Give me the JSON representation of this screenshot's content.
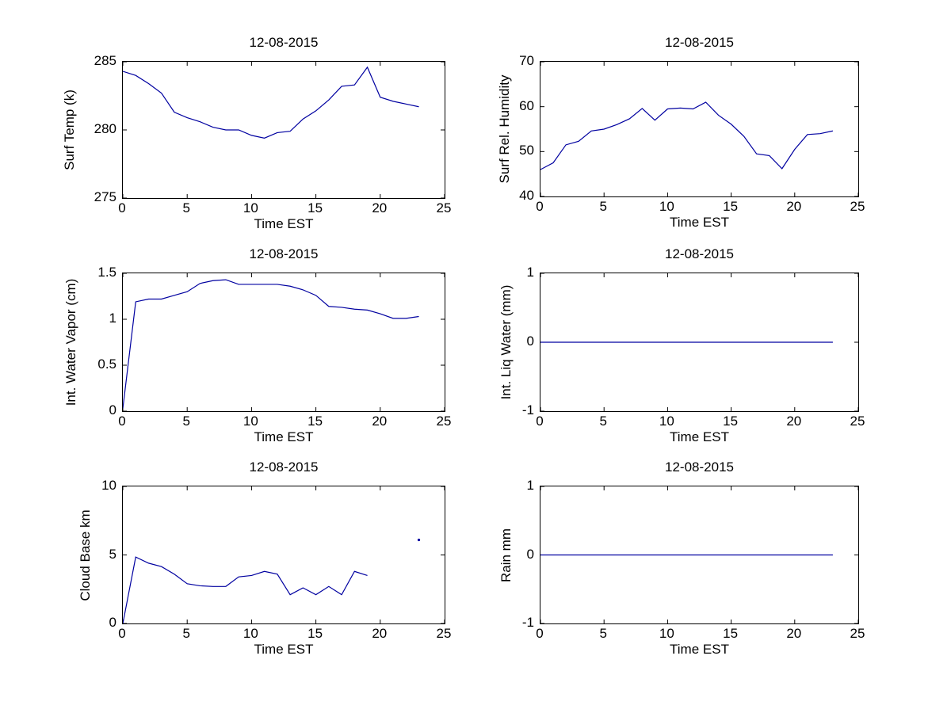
{
  "figure": {
    "background": "#FFFFFF",
    "axis_color": "#000000",
    "text_color": "#000000",
    "line_color": "#0000A0"
  },
  "chart_data": [
    {
      "type": "line",
      "title": "12-08-2015",
      "xlabel": "Time EST",
      "ylabel": "Surf Temp (k)",
      "xlim": [
        0,
        25
      ],
      "ylim": [
        275,
        285
      ],
      "xticks": [
        0,
        5,
        10,
        15,
        20,
        25
      ],
      "xtick_labels": [
        "0",
        "5",
        "10",
        "15",
        "20",
        "25"
      ],
      "yticks": [
        275,
        280,
        285
      ],
      "ytick_labels": [
        "275",
        "280",
        "285"
      ],
      "grid": false,
      "x": [
        0,
        1,
        2,
        3,
        4,
        5,
        6,
        7,
        8,
        9,
        10,
        11,
        12,
        13,
        14,
        15,
        16,
        17,
        18,
        19,
        20,
        21,
        22,
        23
      ],
      "y": [
        284.3,
        284.0,
        283.4,
        282.7,
        281.3,
        280.9,
        280.6,
        280.2,
        280.0,
        280.0,
        279.6,
        279.4,
        279.8,
        279.9,
        280.8,
        281.4,
        282.2,
        283.2,
        283.3,
        284.6,
        282.4,
        282.1,
        281.9,
        281.7
      ]
    },
    {
      "type": "line",
      "title": "12-08-2015",
      "xlabel": "Time EST",
      "ylabel": "Surf Rel. Humidity",
      "xlim": [
        0,
        25
      ],
      "ylim": [
        40,
        70
      ],
      "xticks": [
        0,
        5,
        10,
        15,
        20,
        25
      ],
      "xtick_labels": [
        "0",
        "5",
        "10",
        "15",
        "20",
        "25"
      ],
      "yticks": [
        40,
        50,
        60,
        70
      ],
      "ytick_labels": [
        "40",
        "50",
        "60",
        "70"
      ],
      "grid": false,
      "x": [
        0,
        1,
        2,
        3,
        4,
        5,
        6,
        7,
        8,
        9,
        10,
        11,
        12,
        13,
        14,
        15,
        16,
        17,
        18,
        19,
        20,
        21,
        22,
        23
      ],
      "y": [
        46.0,
        47.5,
        51.5,
        52.3,
        54.6,
        55.0,
        56.0,
        57.3,
        59.6,
        57.0,
        59.5,
        59.7,
        59.5,
        61.0,
        58.1,
        56.1,
        53.4,
        49.5,
        49.1,
        46.2,
        50.5,
        53.8,
        54.0,
        54.6
      ]
    },
    {
      "type": "line",
      "title": "12-08-2015",
      "xlabel": "Time EST",
      "ylabel": "Int. Water Vapor (cm)",
      "xlim": [
        0,
        25
      ],
      "ylim": [
        0,
        1.5
      ],
      "xticks": [
        0,
        5,
        10,
        15,
        20,
        25
      ],
      "xtick_labels": [
        "0",
        "5",
        "10",
        "15",
        "20",
        "25"
      ],
      "yticks": [
        0,
        0.5,
        1,
        1.5
      ],
      "ytick_labels": [
        "0",
        "0.5",
        "1",
        "1.5"
      ],
      "grid": false,
      "x": [
        0,
        1,
        2,
        3,
        4,
        5,
        6,
        7,
        8,
        9,
        10,
        11,
        12,
        13,
        14,
        15,
        16,
        17,
        18,
        19,
        20,
        21,
        22,
        23
      ],
      "y": [
        0.03,
        1.19,
        1.22,
        1.22,
        1.26,
        1.3,
        1.39,
        1.42,
        1.43,
        1.38,
        1.38,
        1.38,
        1.38,
        1.36,
        1.32,
        1.26,
        1.14,
        1.13,
        1.11,
        1.1,
        1.06,
        1.01,
        1.01,
        1.03
      ]
    },
    {
      "type": "line",
      "title": "12-08-2015",
      "xlabel": "Time EST",
      "ylabel": "Int. Liq Water (mm)",
      "xlim": [
        0,
        25
      ],
      "ylim": [
        -1,
        1
      ],
      "xticks": [
        0,
        5,
        10,
        15,
        20,
        25
      ],
      "xtick_labels": [
        "0",
        "5",
        "10",
        "15",
        "20",
        "25"
      ],
      "yticks": [
        -1,
        0,
        1
      ],
      "ytick_labels": [
        "-1",
        "0",
        "1"
      ],
      "grid": false,
      "x": [
        0,
        1,
        2,
        3,
        4,
        5,
        6,
        7,
        8,
        9,
        10,
        11,
        12,
        13,
        14,
        15,
        16,
        17,
        18,
        19,
        20,
        21,
        22,
        23
      ],
      "y": [
        0,
        0,
        0,
        0,
        0,
        0,
        0,
        0,
        0,
        0,
        0,
        0,
        0,
        0,
        0,
        0,
        0,
        0,
        0,
        0,
        0,
        0,
        0,
        0
      ]
    },
    {
      "type": "line",
      "title": "12-08-2015",
      "xlabel": "Time EST",
      "ylabel": "Cloud Base km",
      "xlim": [
        0,
        25
      ],
      "ylim": [
        0,
        10
      ],
      "xticks": [
        0,
        5,
        10,
        15,
        20,
        25
      ],
      "xtick_labels": [
        "0",
        "5",
        "10",
        "15",
        "20",
        "25"
      ],
      "yticks": [
        0,
        5,
        10
      ],
      "ytick_labels": [
        "0",
        "5",
        "10"
      ],
      "grid": false,
      "x": [
        0,
        1,
        2,
        3,
        4,
        5,
        6,
        7,
        8,
        9,
        10,
        11,
        12,
        13,
        14,
        15,
        16,
        17,
        18,
        19,
        20,
        21,
        22,
        23
      ],
      "y": [
        0,
        4.85,
        4.4,
        4.15,
        3.6,
        2.9,
        2.75,
        2.7,
        2.7,
        3.4,
        3.5,
        3.8,
        3.6,
        2.1,
        2.6,
        2.1,
        2.7,
        2.1,
        3.8,
        3.5,
        null,
        null,
        null,
        6.1
      ]
    },
    {
      "type": "line",
      "title": "12-08-2015",
      "xlabel": "Time EST",
      "ylabel": "Rain mm",
      "xlim": [
        0,
        25
      ],
      "ylim": [
        -1,
        1
      ],
      "xticks": [
        0,
        5,
        10,
        15,
        20,
        25
      ],
      "xtick_labels": [
        "0",
        "5",
        "10",
        "15",
        "20",
        "25"
      ],
      "yticks": [
        -1,
        0,
        1
      ],
      "ytick_labels": [
        "-1",
        "0",
        "1"
      ],
      "grid": false,
      "x": [
        0,
        1,
        2,
        3,
        4,
        5,
        6,
        7,
        8,
        9,
        10,
        11,
        12,
        13,
        14,
        15,
        16,
        17,
        18,
        19,
        20,
        21,
        22,
        23
      ],
      "y": [
        0,
        0,
        0,
        0,
        0,
        0,
        0,
        0,
        0,
        0,
        0,
        0,
        0,
        0,
        0,
        0,
        0,
        0,
        0,
        0,
        0,
        0,
        0,
        0
      ]
    }
  ]
}
